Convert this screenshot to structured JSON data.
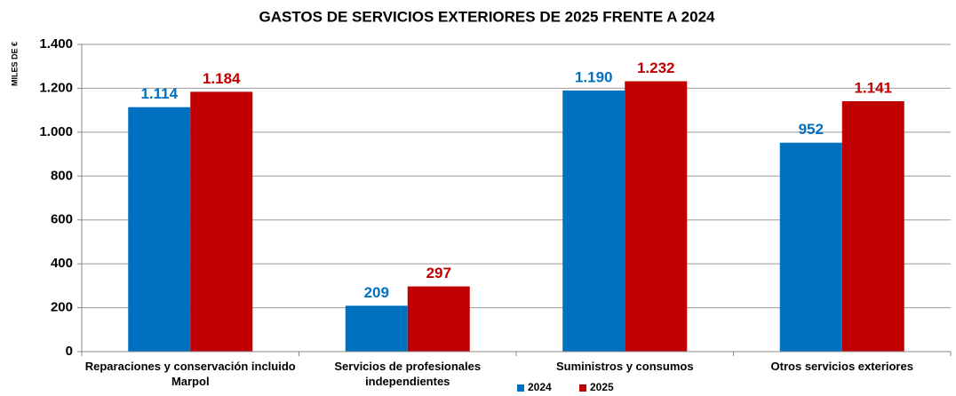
{
  "chart_data": {
    "type": "bar",
    "title": "GASTOS DE SERVICIOS EXTERIORES DE 2025 FRENTE A 2024",
    "y_label": "MILES DE €",
    "categories": [
      "Reparaciones y conservación incluido Marpol",
      "Servicios de profesionales independientes",
      "Suministros y consumos",
      "Otros servicios exteriores"
    ],
    "series": [
      {
        "name": "2024",
        "color": "#0070c0",
        "values": [
          1114,
          209,
          1190,
          952
        ],
        "value_labels": [
          "1.114",
          "209",
          "1.190",
          "952"
        ]
      },
      {
        "name": "2025",
        "color": "#c00000",
        "values": [
          1184,
          297,
          1232,
          1141
        ],
        "value_labels": [
          "1.184",
          "297",
          "1.232",
          "1.141"
        ]
      }
    ],
    "ylim": [
      0,
      1400
    ],
    "yticks": [
      0,
      200,
      400,
      600,
      800,
      {
        "value": 1000,
        "label": "1.000"
      },
      {
        "value": 1200,
        "label": "1.200"
      },
      {
        "value": 1400,
        "label": "1.400"
      }
    ],
    "grid": true,
    "legend": "bottom"
  }
}
